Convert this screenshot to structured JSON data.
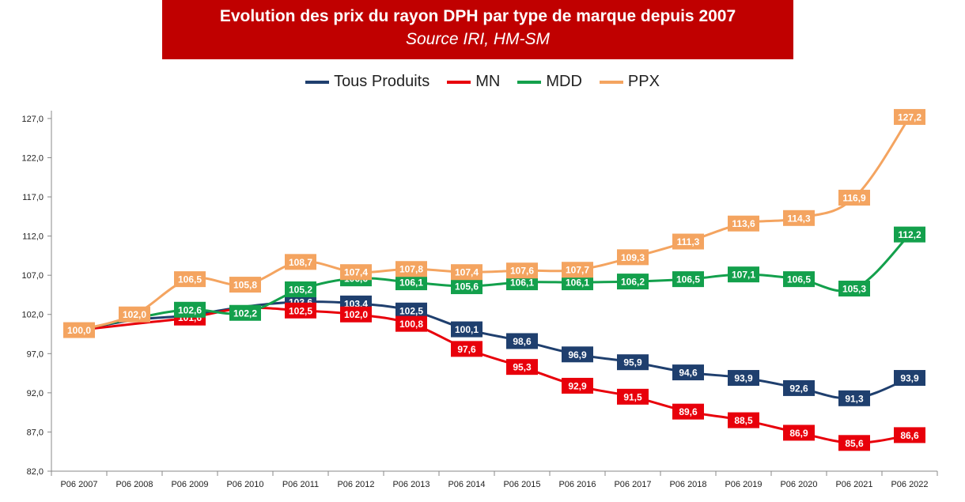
{
  "header": {
    "title": "Evolution des prix du rayon DPH par type de marque depuis 2007",
    "subtitle": "Source IRI, HM-SM"
  },
  "chart_data": {
    "type": "line",
    "title": "Evolution des prix du rayon DPH par type de marque depuis 2007",
    "subtitle": "Source IRI, HM-SM",
    "xlabel": "",
    "ylabel": "",
    "ylim": [
      82,
      128
    ],
    "yticks": [
      "82,0",
      "87,0",
      "92,0",
      "97,0",
      "102,0",
      "107,0",
      "112,0",
      "117,0",
      "122,0",
      "127,0"
    ],
    "ytick_values": [
      82,
      87,
      92,
      97,
      102,
      107,
      112,
      117,
      122,
      127
    ],
    "categories": [
      "P06 2007",
      "P06 2008",
      "P06 2009",
      "P06 2010",
      "P06 2011",
      "P06 2012",
      "P06 2013",
      "P06 2014",
      "P06 2015",
      "P06 2016",
      "P06 2017",
      "P06 2018",
      "P06 2019",
      "P06 2020",
      "P06 2021",
      "P06 2022"
    ],
    "legend_position": "top",
    "grid": false,
    "series": [
      {
        "name": "Tous Produits",
        "color": "#1f3f6e",
        "values": [
          100.0,
          101.3,
          101.9,
          103.0,
          103.6,
          103.4,
          102.5,
          100.1,
          98.6,
          96.9,
          95.9,
          94.6,
          93.9,
          92.6,
          91.3,
          93.9
        ],
        "labels": [
          null,
          null,
          null,
          null,
          "103,6",
          "103,4",
          "102,5",
          "100,1",
          "98,6",
          "96,9",
          "95,9",
          "94,6",
          "93,9",
          "92,6",
          "91,3",
          "93,9"
        ]
      },
      {
        "name": "MN",
        "color": "#e8000b",
        "values": [
          100.0,
          100.8,
          101.6,
          102.8,
          102.5,
          102.0,
          100.8,
          97.6,
          95.3,
          92.9,
          91.5,
          89.6,
          88.5,
          86.9,
          85.6,
          86.6
        ],
        "labels": [
          null,
          null,
          "101,6",
          null,
          "102,5",
          "102,0",
          "100,8",
          "97,6",
          "95,3",
          "92,9",
          "91,5",
          "89,6",
          "88,5",
          "86,9",
          "85,6",
          "86,6"
        ]
      },
      {
        "name": "MDD",
        "color": "#13a04c",
        "values": [
          100.0,
          101.5,
          102.6,
          102.2,
          105.2,
          106.6,
          106.1,
          105.6,
          106.1,
          106.1,
          106.2,
          106.5,
          107.1,
          106.5,
          105.3,
          112.2
        ],
        "labels": [
          null,
          null,
          "102,6",
          "102,2",
          "105,2",
          "106,6",
          "106,1",
          "105,6",
          "106,1",
          "106,1",
          "106,2",
          "106,5",
          "107,1",
          "106,5",
          "105,3",
          "112,2"
        ]
      },
      {
        "name": "PPX",
        "color": "#f4a460",
        "values": [
          100.0,
          102.0,
          106.5,
          105.8,
          108.7,
          107.4,
          107.8,
          107.4,
          107.6,
          107.7,
          109.3,
          111.3,
          113.6,
          114.3,
          116.9,
          127.2
        ],
        "labels": [
          "100,0",
          "102,0",
          "106,5",
          "105,8",
          "108,7",
          "107,4",
          "107,8",
          "107,4",
          "107,6",
          "107,7",
          "109,3",
          "111,3",
          "113,6",
          "114,3",
          "116,9",
          "127,2"
        ]
      }
    ]
  }
}
